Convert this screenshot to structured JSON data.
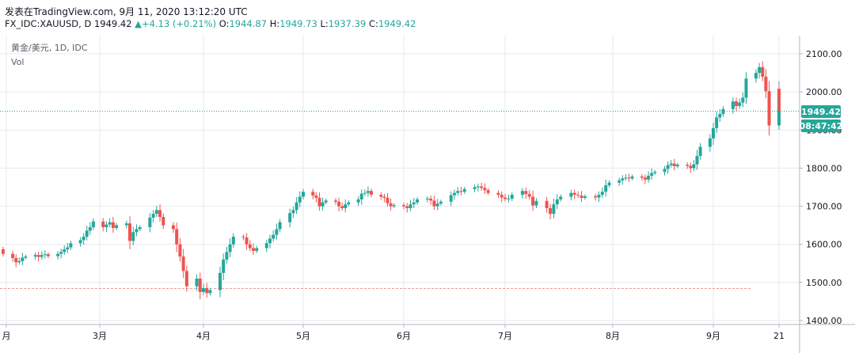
{
  "header": {
    "published": "发表在TradingView.com, 9月 11, 2020 13:12:20 UTC",
    "symbol": "FX_IDC:XAUUSD, D",
    "last": "1949.42",
    "change": "+4.13 (+0.21%)",
    "open_label": "O:",
    "open": "1944.87",
    "high_label": "H:",
    "high": "1949.73",
    "low_label": "L:",
    "low": "1937.39",
    "close_label": "C:",
    "close": "1949.42"
  },
  "legend": {
    "title": "黄金/美元, 1D, IDC",
    "vol": "Vol"
  },
  "price_badge": "1949.42",
  "time_badge": "08:47:42",
  "colors": {
    "up": "#26a69a",
    "down": "#ef5350",
    "grid": "#e6e9ef",
    "axis_border": "#b2b5be",
    "price_line": "#26a69a",
    "dashed_line": "#ef9a9a"
  },
  "chart_data": {
    "type": "candlestick",
    "symbol": "XAUUSD",
    "interval": "1D",
    "yaxis": {
      "ticks": [
        1400,
        1500,
        1600,
        1700,
        1800,
        1900,
        2000,
        2100
      ],
      "tick_labels": [
        "1400.00",
        "1500.00",
        "1600.00",
        "1700.00",
        "1800.00",
        "1900.00",
        "2000.00",
        "2100.00"
      ]
    },
    "xaxis": {
      "ticks": [
        {
          "label": "月",
          "date": "2020-02-01"
        },
        {
          "label": "3月",
          "date": "2020-03-01"
        },
        {
          "label": "4月",
          "date": "2020-04-01"
        },
        {
          "label": "5月",
          "date": "2020-05-01"
        },
        {
          "label": "6月",
          "date": "2020-06-01"
        },
        {
          "label": "7月",
          "date": "2020-07-01"
        },
        {
          "label": "8月",
          "date": "2020-08-01"
        },
        {
          "label": "9月",
          "date": "2020-09-01"
        },
        {
          "label": "21",
          "date": "2020-09-21"
        }
      ]
    },
    "grid": true,
    "last_price_line": 1949.42,
    "reference_line": 1484,
    "closes": [
      1575,
      1564,
      1553,
      1556,
      1565,
      1568,
      1572,
      1567,
      1572,
      1574,
      1569,
      1575,
      1580,
      1587,
      1592,
      1603,
      1611,
      1620,
      1636,
      1645,
      1660,
      1645,
      1652,
      1658,
      1643,
      1650,
      1655,
      1609,
      1632,
      1640,
      1645,
      1670,
      1680,
      1690,
      1672,
      1650,
      1640,
      1600,
      1568,
      1530,
      1490,
      1510,
      1475,
      1485,
      1472,
      1480,
      1525,
      1560,
      1580,
      1600,
      1620,
      1618,
      1600,
      1590,
      1583,
      1590,
      1603,
      1615,
      1625,
      1640,
      1658,
      1682,
      1690,
      1710,
      1725,
      1738,
      1728,
      1722,
      1700,
      1710,
      1715,
      1712,
      1700,
      1695,
      1705,
      1710,
      1718,
      1733,
      1735,
      1740,
      1730,
      1725,
      1722,
      1708,
      1700,
      1703,
      1700,
      1695,
      1705,
      1710,
      1718,
      1720,
      1715,
      1700,
      1707,
      1712,
      1729,
      1735,
      1740,
      1738,
      1745,
      1750,
      1752,
      1748,
      1742,
      1735,
      1730,
      1723,
      1719,
      1720,
      1730,
      1740,
      1732,
      1725,
      1702,
      1714,
      1695,
      1680,
      1705,
      1718,
      1725,
      1735,
      1730,
      1728,
      1722,
      1726,
      1723,
      1730,
      1738,
      1755,
      1762,
      1768,
      1773,
      1775,
      1773,
      1778,
      1775,
      1770,
      1780,
      1787,
      1790,
      1798,
      1808,
      1812,
      1805,
      1809,
      1806,
      1800,
      1810,
      1832,
      1856,
      1878,
      1905,
      1933,
      1942,
      1955,
      1975,
      1963,
      1972,
      1985,
      2035,
      2050,
      2065,
      2040,
      2002,
      1912,
      1928,
      1950,
      1943,
      1945,
      2008,
      1983,
      1932,
      1922,
      1928,
      1920,
      1941,
      1950,
      1952,
      1967,
      1958,
      1942,
      1930,
      1930,
      1935,
      1940,
      1925,
      1945,
      1949.42
    ]
  }
}
